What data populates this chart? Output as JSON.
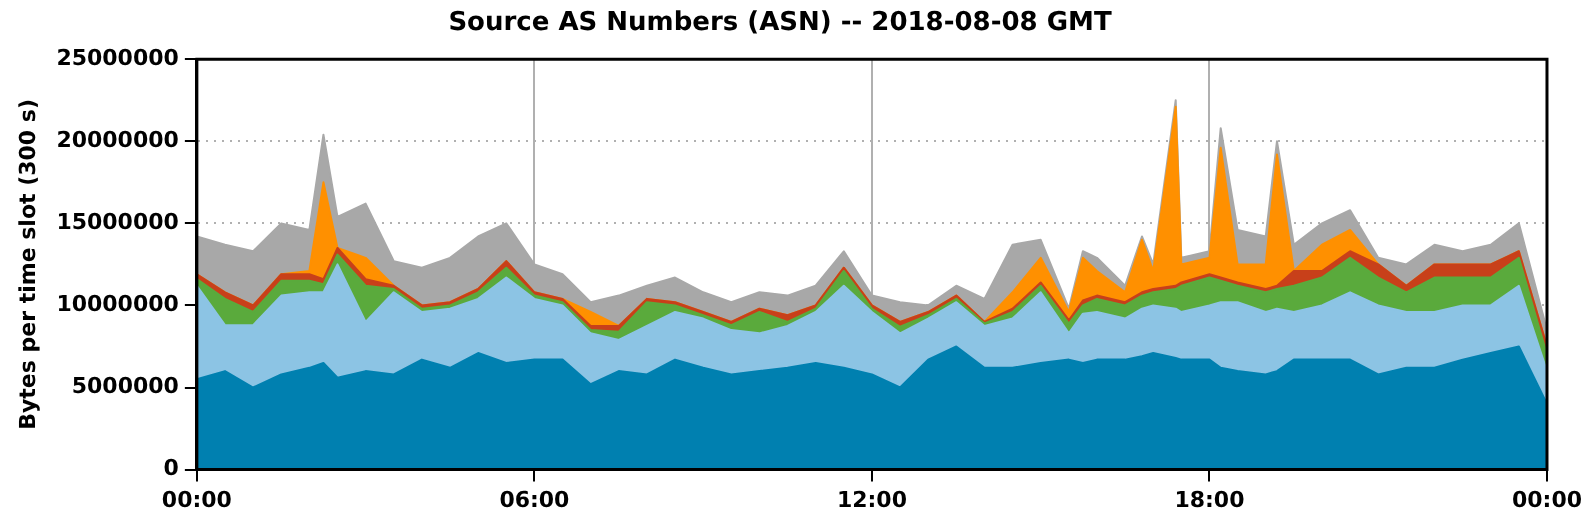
{
  "chart_data": {
    "type": "area",
    "stacked": true,
    "title": "Source AS Numbers (ASN) -- 2018-08-08 GMT",
    "ylabel": "Bytes per time slot (300 s)",
    "x": [
      0,
      0.5,
      1,
      1.5,
      2,
      2.25,
      2.5,
      3,
      3.5,
      4,
      4.5,
      5,
      5.5,
      6,
      6.5,
      7,
      7.5,
      8,
      8.5,
      9,
      9.5,
      10,
      10.5,
      11,
      11.5,
      12,
      12.5,
      13,
      13.5,
      14,
      14.5,
      15,
      15.5,
      15.75,
      16,
      16.5,
      16.8,
      17,
      17.4,
      17.5,
      18,
      18.2,
      18.5,
      19,
      19.2,
      19.5,
      20,
      20.5,
      21,
      21.5,
      22,
      22.5,
      23,
      23.5,
      24
    ],
    "series": [
      {
        "color": "#0080b0",
        "values": [
          5500000,
          6000000,
          5000000,
          5800000,
          6200000,
          6500000,
          5600000,
          6000000,
          5800000,
          6700000,
          6200000,
          7100000,
          6500000,
          6700000,
          6700000,
          5200000,
          6000000,
          5800000,
          6700000,
          6200000,
          5800000,
          6000000,
          6200000,
          6500000,
          6200000,
          5800000,
          5000000,
          6700000,
          7500000,
          6200000,
          6200000,
          6500000,
          6700000,
          6500000,
          6700000,
          6700000,
          6900000,
          7100000,
          6800000,
          6700000,
          6700000,
          6200000,
          6000000,
          5800000,
          6000000,
          6700000,
          6700000,
          6700000,
          5800000,
          6200000,
          6200000,
          6700000,
          7100000,
          7500000,
          4000000
        ]
      },
      {
        "color": "#8cc4e4",
        "values": [
          5700000,
          2800000,
          3800000,
          4800000,
          4600000,
          4300000,
          6900000,
          3000000,
          5000000,
          2900000,
          3600000,
          3300000,
          5200000,
          3700000,
          3300000,
          3100000,
          1900000,
          2950000,
          2900000,
          3000000,
          2700000,
          2300000,
          2550000,
          3100000,
          5000000,
          3800000,
          3300000,
          2500000,
          2700000,
          2550000,
          3000000,
          4300000,
          1600000,
          3000000,
          2900000,
          2500000,
          2900000,
          2900000,
          3000000,
          2900000,
          3300000,
          4000000,
          4200000,
          3800000,
          3800000,
          2900000,
          3300000,
          4100000,
          4200000,
          3400000,
          3400000,
          3300000,
          2900000,
          3700000,
          2000000
        ]
      },
      {
        "color": "#5aaa3c",
        "values": [
          400000,
          1600000,
          800000,
          900000,
          700000,
          500000,
          600000,
          2200000,
          200000,
          200000,
          200000,
          400000,
          600000,
          200000,
          200000,
          200000,
          500000,
          1450000,
          400000,
          200000,
          300000,
          1300000,
          250000,
          200000,
          900000,
          200000,
          400000,
          200000,
          200000,
          150000,
          400000,
          400000,
          600000,
          500000,
          800000,
          800000,
          800000,
          800000,
          1200000,
          1600000,
          1700000,
          1300000,
          1000000,
          1200000,
          1200000,
          1600000,
          1700000,
          2100000,
          1700000,
          1200000,
          2100000,
          1700000,
          1700000,
          1700000,
          1000000
        ]
      },
      {
        "color": "#c8401a",
        "values": [
          300000,
          400000,
          400000,
          400000,
          400000,
          300000,
          400000,
          400000,
          200000,
          200000,
          200000,
          200000,
          400000,
          200000,
          200000,
          250000,
          350000,
          200000,
          200000,
          200000,
          200000,
          200000,
          400000,
          200000,
          200000,
          200000,
          300000,
          200000,
          200000,
          100000,
          200000,
          200000,
          200000,
          300000,
          200000,
          200000,
          200000,
          200000,
          200000,
          200000,
          200000,
          200000,
          200000,
          200000,
          200000,
          900000,
          400000,
          400000,
          800000,
          400000,
          800000,
          800000,
          800000,
          400000,
          500000
        ]
      },
      {
        "color": "#ff9000",
        "values": [
          0,
          0,
          0,
          0,
          200000,
          5900000,
          0,
          1300000,
          0,
          0,
          0,
          0,
          0,
          0,
          0,
          850000,
          0,
          0,
          0,
          0,
          0,
          0,
          0,
          0,
          0,
          0,
          0,
          0,
          0,
          0,
          1000000,
          1500000,
          500000,
          2600000,
          1500000,
          600000,
          3200000,
          1100000,
          10900000,
          1100000,
          1000000,
          7900000,
          1100000,
          1500000,
          8000000,
          0,
          1600000,
          1300000,
          0,
          0,
          0,
          0,
          0,
          0,
          0
        ]
      },
      {
        "color": "#a8a8a8",
        "values": [
          2300000,
          2900000,
          3300000,
          3100000,
          2500000,
          2900000,
          1900000,
          3300000,
          1500000,
          2300000,
          2700000,
          3200000,
          2300000,
          1700000,
          1500000,
          600000,
          1850000,
          800000,
          1500000,
          1200000,
          1200000,
          1000000,
          1200000,
          1200000,
          1000000,
          600000,
          1200000,
          400000,
          600000,
          1400000,
          2900000,
          1100000,
          200000,
          400000,
          800000,
          400000,
          200000,
          400000,
          400000,
          400000,
          400000,
          1200000,
          2100000,
          1700000,
          800000,
          1600000,
          1300000,
          1200000,
          400000,
          1300000,
          1200000,
          800000,
          1200000,
          1700000,
          1000000
        ]
      }
    ],
    "xlim": [
      0,
      24
    ],
    "xticks": [
      {
        "value": 0,
        "label": "00:00"
      },
      {
        "value": 6,
        "label": "06:00"
      },
      {
        "value": 12,
        "label": "12:00"
      },
      {
        "value": 18,
        "label": "18:00"
      },
      {
        "value": 24,
        "label": "00:00"
      }
    ],
    "ylim": [
      0,
      25000000
    ],
    "yticks": [
      0,
      5000000,
      10000000,
      15000000,
      20000000,
      25000000
    ],
    "grid": true,
    "line_style": "solid",
    "marker": "none",
    "legend": false
  }
}
